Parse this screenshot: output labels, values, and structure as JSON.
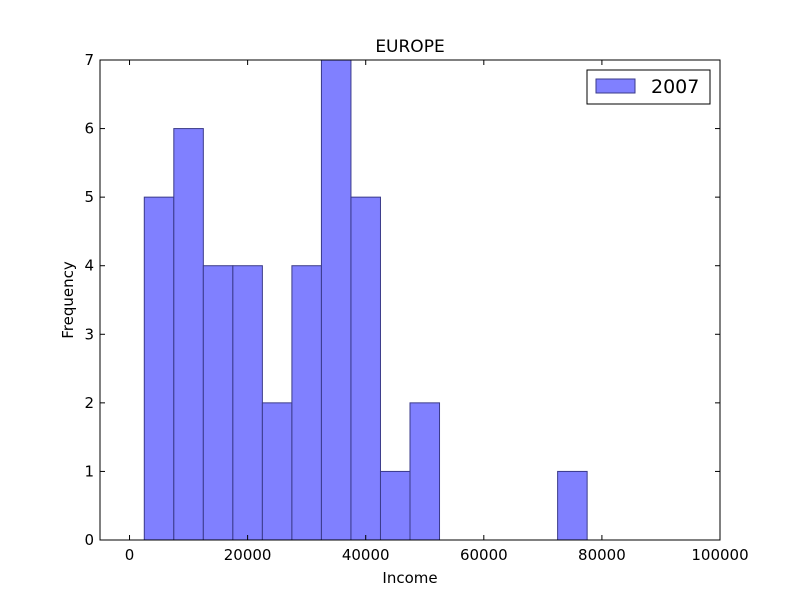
{
  "chart_data": {
    "type": "bar",
    "title": "EUROPE",
    "xlabel": "Income",
    "ylabel": "Frequency",
    "xlim": [
      -5000,
      100000
    ],
    "ylim": [
      0,
      7
    ],
    "x_ticks": [
      0,
      20000,
      40000,
      60000,
      80000,
      100000
    ],
    "y_ticks": [
      0,
      1,
      2,
      3,
      4,
      5,
      6,
      7
    ],
    "legend_position": "top-right",
    "series": [
      {
        "name": "2007",
        "color": "#8080ff",
        "edge_color": "#3a3a8a",
        "bins": [
          {
            "x0": 2500,
            "x1": 7500,
            "count": 5
          },
          {
            "x0": 7500,
            "x1": 12500,
            "count": 6
          },
          {
            "x0": 12500,
            "x1": 17500,
            "count": 4
          },
          {
            "x0": 17500,
            "x1": 22500,
            "count": 4
          },
          {
            "x0": 22500,
            "x1": 27500,
            "count": 2
          },
          {
            "x0": 27500,
            "x1": 32500,
            "count": 4
          },
          {
            "x0": 32500,
            "x1": 37500,
            "count": 7
          },
          {
            "x0": 37500,
            "x1": 42500,
            "count": 5
          },
          {
            "x0": 42500,
            "x1": 47500,
            "count": 1
          },
          {
            "x0": 47500,
            "x1": 52500,
            "count": 2
          },
          {
            "x0": 72500,
            "x1": 77500,
            "count": 1
          }
        ]
      }
    ]
  }
}
